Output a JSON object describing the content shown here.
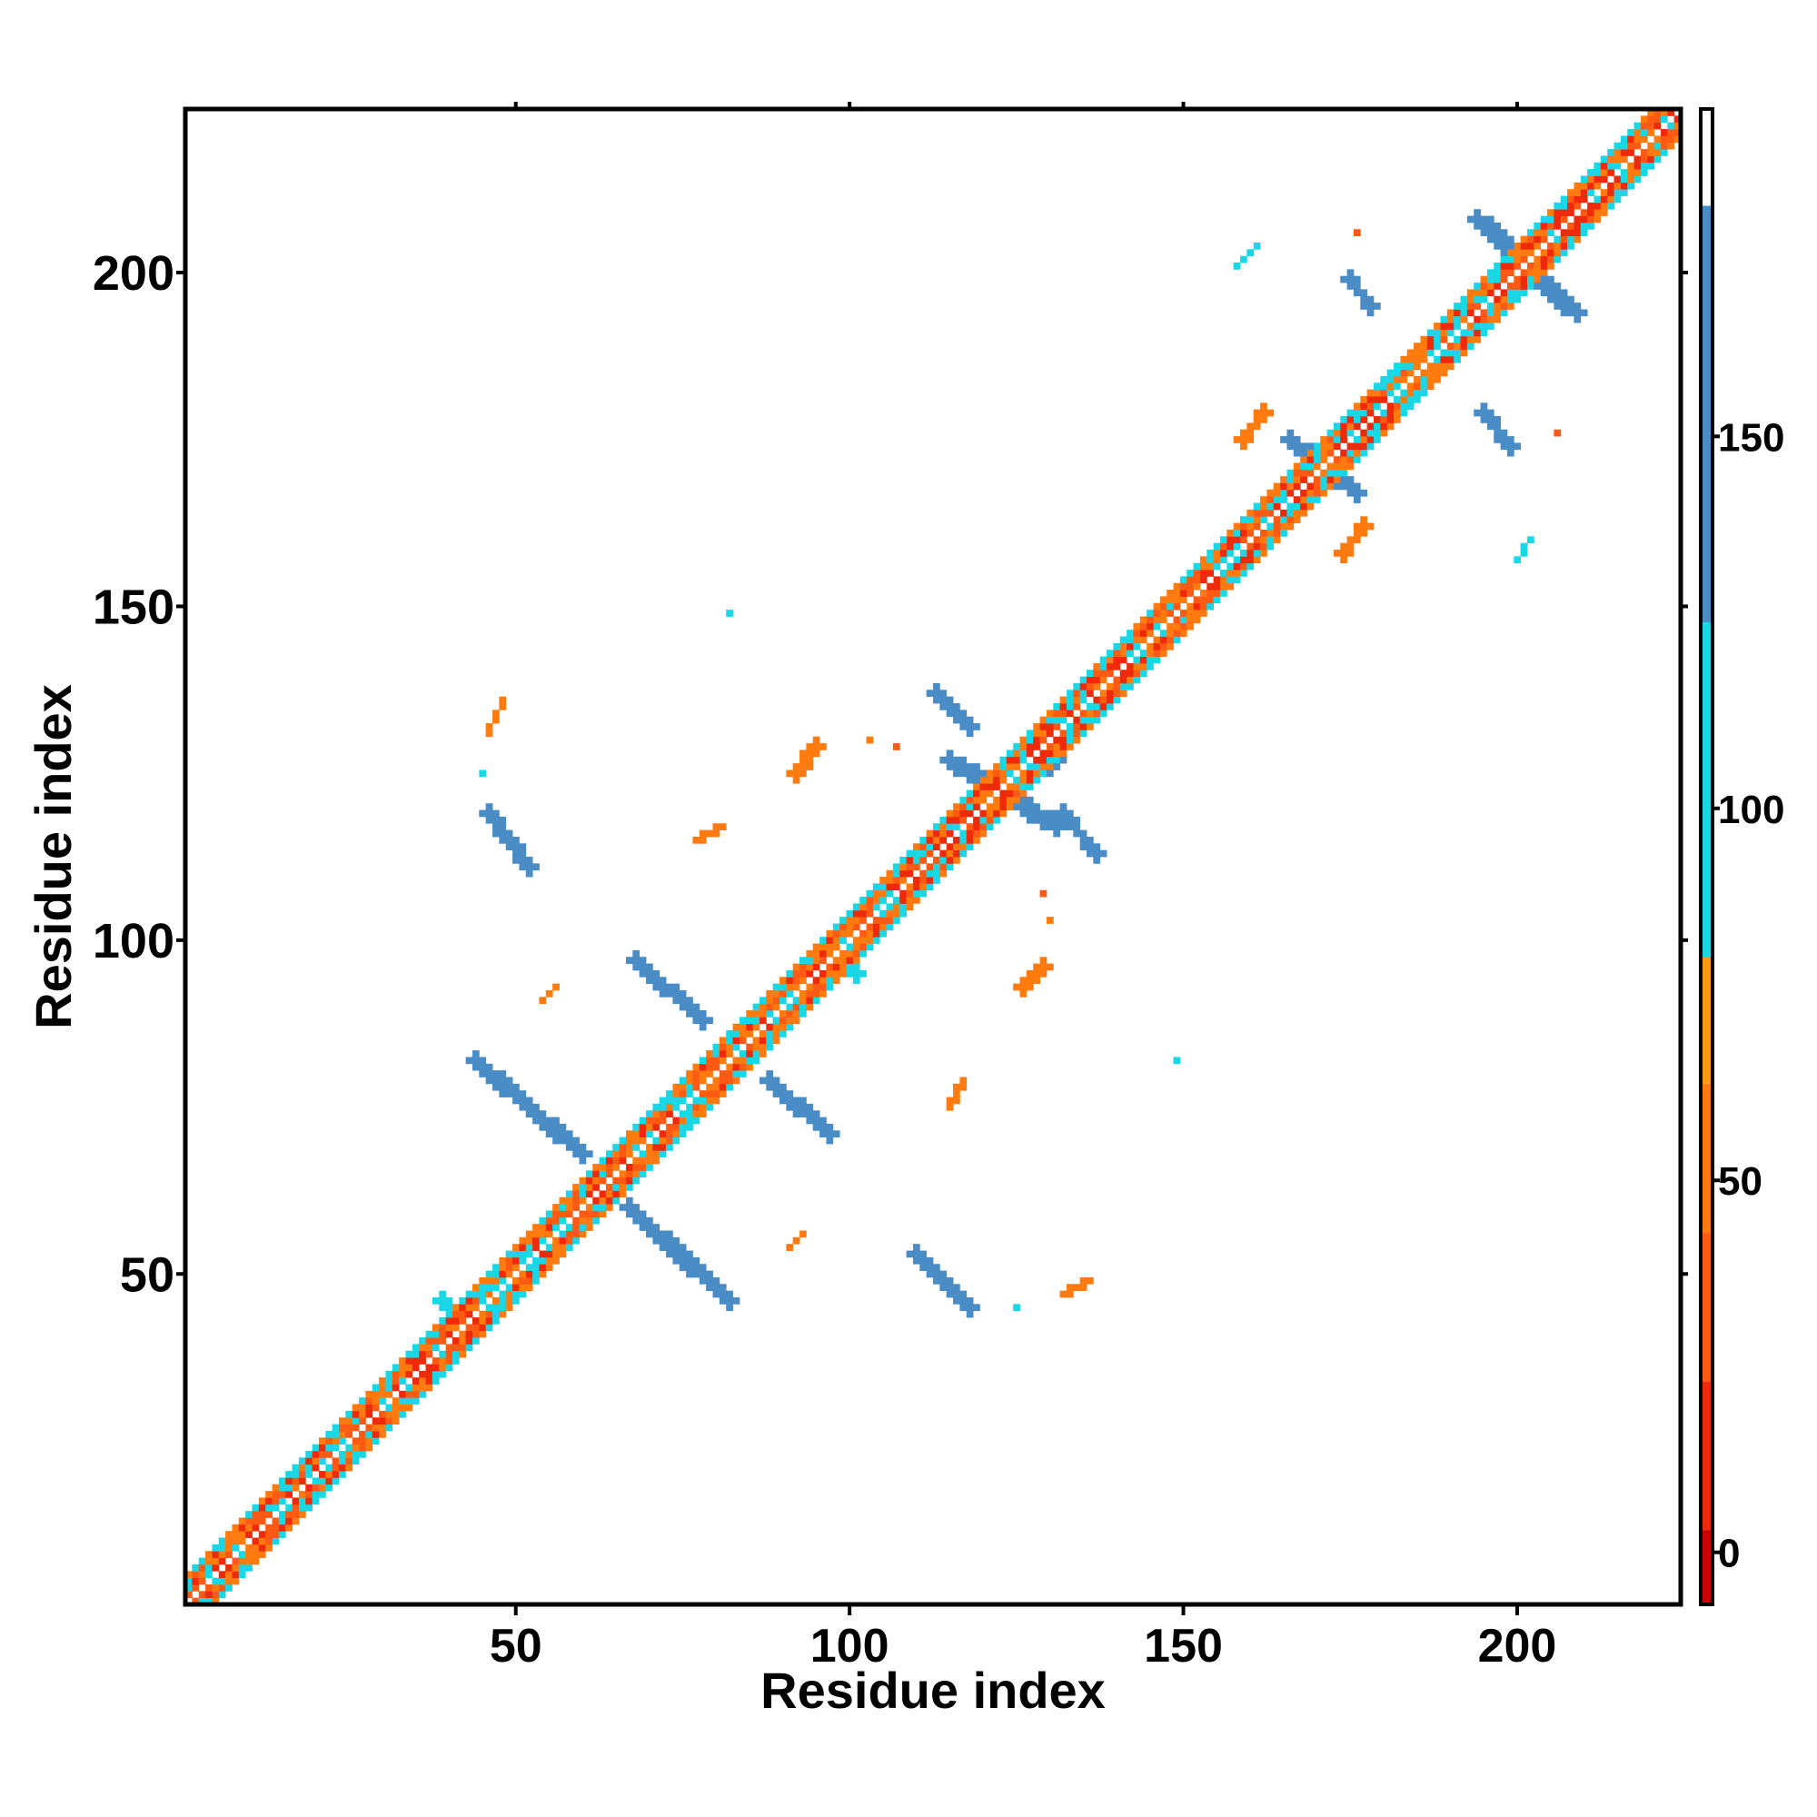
{
  "chart_data": {
    "type": "heatmap",
    "title": "",
    "xlabel": "Residue index",
    "ylabel": "Residue index",
    "xlim": [
      1,
      224
    ],
    "ylim": [
      1,
      224
    ],
    "xticks": [
      50,
      100,
      150,
      200
    ],
    "yticks": [
      50,
      100,
      150,
      200
    ],
    "grid": false,
    "colorbar": {
      "position": "right",
      "range": [
        -7,
        194
      ],
      "ticks": [
        0,
        50,
        100,
        150
      ],
      "bins": [
        {
          "from": -7,
          "to": 3,
          "color": "#cc0000"
        },
        {
          "from": 3,
          "to": 23,
          "color": "#ee2a0a"
        },
        {
          "from": 23,
          "to": 43,
          "color": "#ff5a14"
        },
        {
          "from": 43,
          "to": 63,
          "color": "#ff7b0f"
        },
        {
          "from": 63,
          "to": 80,
          "color": "#ff9a10"
        },
        {
          "from": 80,
          "to": 125,
          "color": "#1ad7e6"
        },
        {
          "from": 125,
          "to": 181,
          "color": "#4a8cc6"
        },
        {
          "from": 181,
          "to": 194,
          "color": "#ffffff"
        }
      ]
    },
    "features": [
      {
        "kind": "diagonal_band",
        "from": 1,
        "to": 224,
        "width": 4,
        "values": [
          5,
          40,
          60,
          100
        ]
      },
      {
        "kind": "segment",
        "x1": 44,
        "y1": 82,
        "x2": 60,
        "y2": 68,
        "width": 2.4,
        "value": 145
      },
      {
        "kind": "segment",
        "x1": 67,
        "y1": 60,
        "x2": 82,
        "y2": 46,
        "width": 2.4,
        "value": 145
      },
      {
        "kind": "segment",
        "x1": 68,
        "y1": 97,
        "x2": 78,
        "y2": 88,
        "width": 2.2,
        "value": 145
      },
      {
        "kind": "segment",
        "x1": 88,
        "y1": 79,
        "x2": 97,
        "y2": 71,
        "width": 2.2,
        "value": 145
      },
      {
        "kind": "segment",
        "x1": 46,
        "y1": 119,
        "x2": 52,
        "y2": 111,
        "width": 2.2,
        "value": 145
      },
      {
        "kind": "segment",
        "x1": 110,
        "y1": 53,
        "x2": 118,
        "y2": 45,
        "width": 2.2,
        "value": 145
      },
      {
        "kind": "segment",
        "x1": 113,
        "y1": 137,
        "x2": 118,
        "y2": 132,
        "width": 2.0,
        "value": 145
      },
      {
        "kind": "segment",
        "x1": 132,
        "y1": 119,
        "x2": 137,
        "y2": 113,
        "width": 2.0,
        "value": 145
      },
      {
        "kind": "segment",
        "x1": 115,
        "y1": 127,
        "x2": 131,
        "y2": 117,
        "width": 2.6,
        "value": 140
      },
      {
        "kind": "segment",
        "x1": 115,
        "y1": 117,
        "x2": 131,
        "y2": 127,
        "width": 2.6,
        "value": 140
      },
      {
        "kind": "segment",
        "x1": 166,
        "y1": 175,
        "x2": 176,
        "y2": 167,
        "width": 2.4,
        "value": 140
      },
      {
        "kind": "segment",
        "x1": 166,
        "y1": 167,
        "x2": 176,
        "y2": 175,
        "width": 2.4,
        "value": 140
      },
      {
        "kind": "segment",
        "x1": 194,
        "y1": 208,
        "x2": 209,
        "y2": 194,
        "width": 2.8,
        "value": 145
      },
      {
        "kind": "segment",
        "x1": 194,
        "y1": 194,
        "x2": 209,
        "y2": 208,
        "width": 2.4,
        "value": 140
      },
      {
        "kind": "segment",
        "x1": 175,
        "y1": 199,
        "x2": 178,
        "y2": 195,
        "width": 2.0,
        "value": 145
      },
      {
        "kind": "segment",
        "x1": 195,
        "y1": 179,
        "x2": 199,
        "y2": 174,
        "width": 2.0,
        "value": 145
      },
      {
        "kind": "segment",
        "x1": 96,
        "y1": 99,
        "x2": 101,
        "y2": 95,
        "width": 2.0,
        "value": 120
      },
      {
        "kind": "segment",
        "x1": 39,
        "y1": 46,
        "x2": 44,
        "y2": 42,
        "width": 2.0,
        "value": 100
      },
      {
        "kind": "segment",
        "x1": 126,
        "y1": 93,
        "x2": 129,
        "y2": 96,
        "width": 2.0,
        "value": 60
      },
      {
        "kind": "segment",
        "x1": 92,
        "y1": 125,
        "x2": 95,
        "y2": 129,
        "width": 2.0,
        "value": 60
      },
      {
        "kind": "segment",
        "x1": 159,
        "y1": 175,
        "x2": 162,
        "y2": 179,
        "width": 2.0,
        "value": 60
      },
      {
        "kind": "segment",
        "x1": 174,
        "y1": 158,
        "x2": 177,
        "y2": 162,
        "width": 2.0,
        "value": 60
      },
      {
        "kind": "segment",
        "x1": 77,
        "y1": 115,
        "x2": 81,
        "y2": 117,
        "width": 1.2,
        "value": 60
      },
      {
        "kind": "segment",
        "x1": 115,
        "y1": 75,
        "x2": 117,
        "y2": 79,
        "width": 1.2,
        "value": 60
      },
      {
        "kind": "segment",
        "x1": 91,
        "y1": 54,
        "x2": 93,
        "y2": 56,
        "width": 1.0,
        "value": 60
      },
      {
        "kind": "segment",
        "x1": 54,
        "y1": 91,
        "x2": 56,
        "y2": 93,
        "width": 1.0,
        "value": 60
      },
      {
        "kind": "segment",
        "x1": 46,
        "y1": 131,
        "x2": 48,
        "y2": 136,
        "width": 1.0,
        "value": 60
      },
      {
        "kind": "segment",
        "x1": 132,
        "y1": 47,
        "x2": 136,
        "y2": 49,
        "width": 1.0,
        "value": 60
      },
      {
        "kind": "segment",
        "x1": 158,
        "y1": 201,
        "x2": 161,
        "y2": 204,
        "width": 1.0,
        "value": 100
      },
      {
        "kind": "segment",
        "x1": 200,
        "y1": 157,
        "x2": 202,
        "y2": 160,
        "width": 1.0,
        "value": 100
      },
      {
        "kind": "dot",
        "x": 82,
        "y": 149,
        "value": 100
      },
      {
        "kind": "dot",
        "x": 149,
        "y": 82,
        "value": 100
      },
      {
        "kind": "dot",
        "x": 130,
        "y": 103,
        "value": 60
      },
      {
        "kind": "dot",
        "x": 103,
        "y": 130,
        "value": 60
      },
      {
        "kind": "dot",
        "x": 45,
        "y": 125,
        "value": 100
      },
      {
        "kind": "dot",
        "x": 125,
        "y": 45,
        "value": 100
      },
      {
        "kind": "dot",
        "x": 206,
        "y": 176,
        "value": 40
      },
      {
        "kind": "dot",
        "x": 176,
        "y": 206,
        "value": 40
      },
      {
        "kind": "dot",
        "x": 107,
        "y": 129,
        "value": 40
      },
      {
        "kind": "dot",
        "x": 129,
        "y": 107,
        "value": 40
      }
    ]
  }
}
